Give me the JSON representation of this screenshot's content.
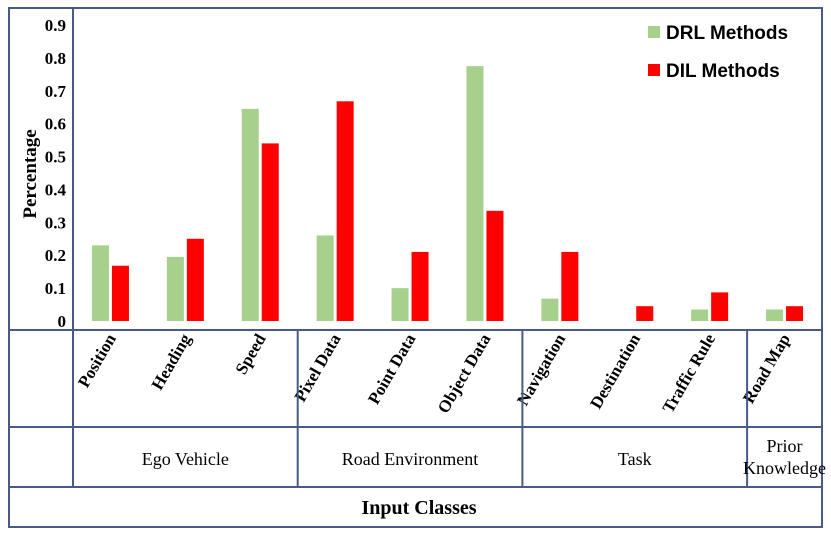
{
  "chart_data": {
    "type": "bar",
    "categories": [
      "Position",
      "Heading",
      "Speed",
      "Pixel Data",
      "Point Data",
      "Object Data",
      "Navigation",
      "Destination",
      "Traffic Rule",
      "Road Map"
    ],
    "series": [
      {
        "name": "DRL Methods",
        "color": "#a8d08d",
        "values": [
          0.23,
          0.195,
          0.645,
          0.26,
          0.1,
          0.775,
          0.068,
          0,
          0.035,
          0.035
        ]
      },
      {
        "name": "DIL Methods",
        "color": "#ff0000",
        "values": [
          0.168,
          0.25,
          0.54,
          0.668,
          0.21,
          0.335,
          0.21,
          0.045,
          0.087,
          0.045
        ]
      }
    ],
    "groups": [
      {
        "label": "Ego Vehicle",
        "categories": [
          "Position",
          "Heading",
          "Speed"
        ]
      },
      {
        "label": "Road Environment",
        "categories": [
          "Pixel Data",
          "Point Data",
          "Object Data"
        ]
      },
      {
        "label": "Task",
        "categories": [
          "Navigation",
          "Destination",
          "Traffic Rule"
        ]
      },
      {
        "label": "Prior Knowledge",
        "label_lines": [
          "Prior",
          "Knowledge"
        ],
        "categories": [
          "Road Map"
        ]
      }
    ],
    "ylabel": "Percentage",
    "xlabel": "Input Classes",
    "yticks": [
      "0",
      "0.1",
      "0.2",
      "0.3",
      "0.4",
      "0.5",
      "0.6",
      "0.7",
      "0.8",
      "0.9"
    ],
    "ylim": [
      0,
      0.9
    ],
    "grid": false,
    "legend_position": "top-right"
  }
}
